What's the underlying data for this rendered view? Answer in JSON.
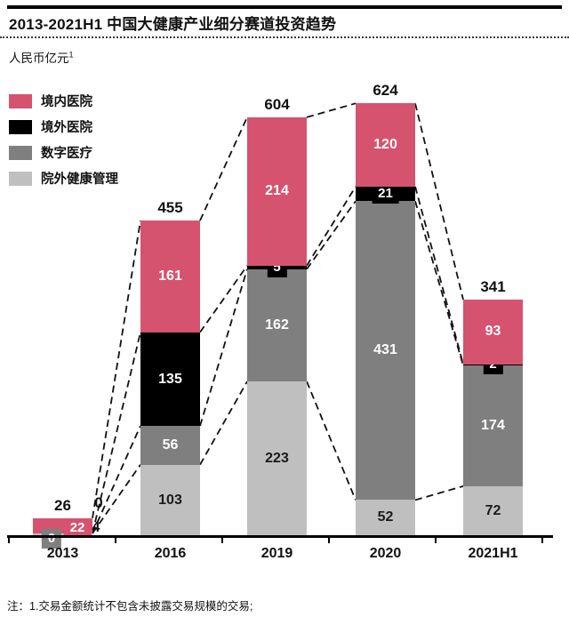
{
  "title": "2013-2021H1 中国大健康产业细分赛道投资趋势",
  "unit": {
    "label": "人民币亿元",
    "superscript": "1"
  },
  "footnote": "注：1.交易金额统计不包含未披露交易规模的交易;",
  "colors": {
    "domestic_hospital": "#d5536f",
    "overseas_hospital": "#000000",
    "digital_health": "#7f7f7f",
    "out_of_hospital": "#bfbfbf",
    "axis": "#000000",
    "connector": "#111111"
  },
  "chart_data": {
    "type": "bar",
    "stacked": true,
    "connector_lines": "dashed",
    "legend_position": "top-left",
    "ylabel": "人民币亿元",
    "categories": [
      "2013",
      "2016",
      "2019",
      "2020",
      "2021H1"
    ],
    "totals": [
      26,
      455,
      604,
      624,
      341
    ],
    "series": [
      {
        "name": "境内医院",
        "color": "#d5536f",
        "values": [
          22,
          161,
          214,
          120,
          93
        ]
      },
      {
        "name": "境外医院",
        "color": "#000000",
        "values": [
          0,
          135,
          5,
          21,
          2
        ]
      },
      {
        "name": "数字医疗",
        "color": "#7f7f7f",
        "values": [
          0,
          56,
          162,
          431,
          174
        ]
      },
      {
        "name": "院外健康管理",
        "color": "#bfbfbf",
        "values": [
          4,
          103,
          223,
          52,
          72
        ]
      }
    ]
  }
}
